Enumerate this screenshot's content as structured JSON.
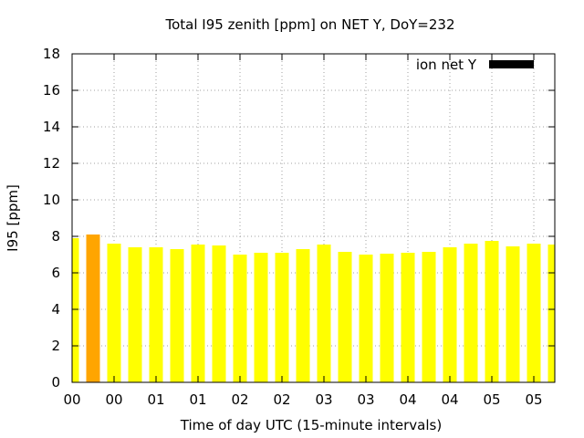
{
  "chart_data": {
    "type": "bar",
    "title": "Total I95 zenith [ppm] on NET Y, DoY=232",
    "xlabel": "Time of day UTC (15-minute intervals)",
    "ylabel": "I95 [ppm]",
    "ylim": [
      0,
      18
    ],
    "yticks": [
      0,
      2,
      4,
      6,
      8,
      10,
      12,
      14,
      16,
      18
    ],
    "xtick_labels": [
      "00",
      "00",
      "01",
      "01",
      "02",
      "02",
      "03",
      "03",
      "04",
      "04",
      "05",
      "05"
    ],
    "grid": true,
    "legend": {
      "label": "ion net Y",
      "color": "#000000",
      "position": "top-right"
    },
    "values": [
      7.9,
      8.1,
      7.6,
      7.4,
      7.4,
      7.3,
      7.55,
      7.5,
      7.0,
      7.1,
      7.1,
      7.3,
      7.55,
      7.15,
      7.0,
      7.05,
      7.1,
      7.15,
      7.4,
      7.6,
      7.75,
      7.45,
      7.6,
      7.55
    ],
    "bar_colors": [
      "#ffff00",
      "#ffa500",
      "#ffff00",
      "#ffff00",
      "#ffff00",
      "#ffff00",
      "#ffff00",
      "#ffff00",
      "#ffff00",
      "#ffff00",
      "#ffff00",
      "#ffff00",
      "#ffff00",
      "#ffff00",
      "#ffff00",
      "#ffff00",
      "#ffff00",
      "#ffff00",
      "#ffff00",
      "#ffff00",
      "#ffff00",
      "#ffff00",
      "#ffff00",
      "#ffff00"
    ]
  }
}
